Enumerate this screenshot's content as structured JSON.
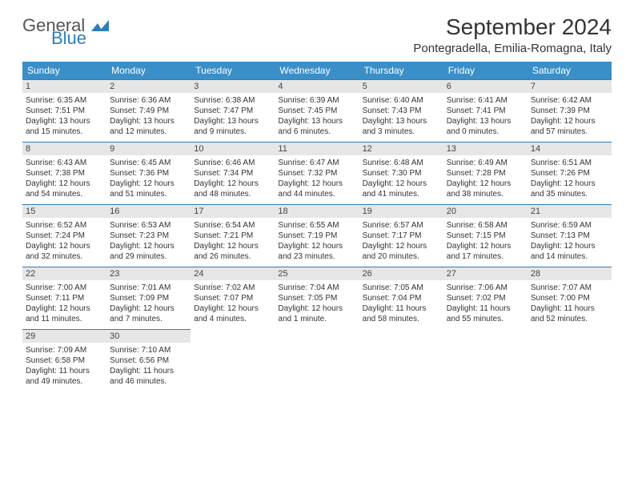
{
  "brand": {
    "general": "General",
    "blue": "Blue"
  },
  "header": {
    "month_title": "September 2024",
    "location": "Pontegradella, Emilia-Romagna, Italy"
  },
  "colors": {
    "header_bg": "#3a8fc8",
    "header_text": "#ffffff",
    "daynum_bg": "#e6e6e6",
    "cell_border": "#2d7fb8",
    "text": "#333333",
    "background": "#ffffff"
  },
  "daysOfWeek": [
    "Sunday",
    "Monday",
    "Tuesday",
    "Wednesday",
    "Thursday",
    "Friday",
    "Saturday"
  ],
  "calendar": {
    "type": "table",
    "columns": 7,
    "rows": 5,
    "days": [
      {
        "n": "1",
        "sunrise": "Sunrise: 6:35 AM",
        "sunset": "Sunset: 7:51 PM",
        "dayl1": "Daylight: 13 hours",
        "dayl2": "and 15 minutes."
      },
      {
        "n": "2",
        "sunrise": "Sunrise: 6:36 AM",
        "sunset": "Sunset: 7:49 PM",
        "dayl1": "Daylight: 13 hours",
        "dayl2": "and 12 minutes."
      },
      {
        "n": "3",
        "sunrise": "Sunrise: 6:38 AM",
        "sunset": "Sunset: 7:47 PM",
        "dayl1": "Daylight: 13 hours",
        "dayl2": "and 9 minutes."
      },
      {
        "n": "4",
        "sunrise": "Sunrise: 6:39 AM",
        "sunset": "Sunset: 7:45 PM",
        "dayl1": "Daylight: 13 hours",
        "dayl2": "and 6 minutes."
      },
      {
        "n": "5",
        "sunrise": "Sunrise: 6:40 AM",
        "sunset": "Sunset: 7:43 PM",
        "dayl1": "Daylight: 13 hours",
        "dayl2": "and 3 minutes."
      },
      {
        "n": "6",
        "sunrise": "Sunrise: 6:41 AM",
        "sunset": "Sunset: 7:41 PM",
        "dayl1": "Daylight: 13 hours",
        "dayl2": "and 0 minutes."
      },
      {
        "n": "7",
        "sunrise": "Sunrise: 6:42 AM",
        "sunset": "Sunset: 7:39 PM",
        "dayl1": "Daylight: 12 hours",
        "dayl2": "and 57 minutes."
      },
      {
        "n": "8",
        "sunrise": "Sunrise: 6:43 AM",
        "sunset": "Sunset: 7:38 PM",
        "dayl1": "Daylight: 12 hours",
        "dayl2": "and 54 minutes."
      },
      {
        "n": "9",
        "sunrise": "Sunrise: 6:45 AM",
        "sunset": "Sunset: 7:36 PM",
        "dayl1": "Daylight: 12 hours",
        "dayl2": "and 51 minutes."
      },
      {
        "n": "10",
        "sunrise": "Sunrise: 6:46 AM",
        "sunset": "Sunset: 7:34 PM",
        "dayl1": "Daylight: 12 hours",
        "dayl2": "and 48 minutes."
      },
      {
        "n": "11",
        "sunrise": "Sunrise: 6:47 AM",
        "sunset": "Sunset: 7:32 PM",
        "dayl1": "Daylight: 12 hours",
        "dayl2": "and 44 minutes."
      },
      {
        "n": "12",
        "sunrise": "Sunrise: 6:48 AM",
        "sunset": "Sunset: 7:30 PM",
        "dayl1": "Daylight: 12 hours",
        "dayl2": "and 41 minutes."
      },
      {
        "n": "13",
        "sunrise": "Sunrise: 6:49 AM",
        "sunset": "Sunset: 7:28 PM",
        "dayl1": "Daylight: 12 hours",
        "dayl2": "and 38 minutes."
      },
      {
        "n": "14",
        "sunrise": "Sunrise: 6:51 AM",
        "sunset": "Sunset: 7:26 PM",
        "dayl1": "Daylight: 12 hours",
        "dayl2": "and 35 minutes."
      },
      {
        "n": "15",
        "sunrise": "Sunrise: 6:52 AM",
        "sunset": "Sunset: 7:24 PM",
        "dayl1": "Daylight: 12 hours",
        "dayl2": "and 32 minutes."
      },
      {
        "n": "16",
        "sunrise": "Sunrise: 6:53 AM",
        "sunset": "Sunset: 7:23 PM",
        "dayl1": "Daylight: 12 hours",
        "dayl2": "and 29 minutes."
      },
      {
        "n": "17",
        "sunrise": "Sunrise: 6:54 AM",
        "sunset": "Sunset: 7:21 PM",
        "dayl1": "Daylight: 12 hours",
        "dayl2": "and 26 minutes."
      },
      {
        "n": "18",
        "sunrise": "Sunrise: 6:55 AM",
        "sunset": "Sunset: 7:19 PM",
        "dayl1": "Daylight: 12 hours",
        "dayl2": "and 23 minutes."
      },
      {
        "n": "19",
        "sunrise": "Sunrise: 6:57 AM",
        "sunset": "Sunset: 7:17 PM",
        "dayl1": "Daylight: 12 hours",
        "dayl2": "and 20 minutes."
      },
      {
        "n": "20",
        "sunrise": "Sunrise: 6:58 AM",
        "sunset": "Sunset: 7:15 PM",
        "dayl1": "Daylight: 12 hours",
        "dayl2": "and 17 minutes."
      },
      {
        "n": "21",
        "sunrise": "Sunrise: 6:59 AM",
        "sunset": "Sunset: 7:13 PM",
        "dayl1": "Daylight: 12 hours",
        "dayl2": "and 14 minutes."
      },
      {
        "n": "22",
        "sunrise": "Sunrise: 7:00 AM",
        "sunset": "Sunset: 7:11 PM",
        "dayl1": "Daylight: 12 hours",
        "dayl2": "and 11 minutes."
      },
      {
        "n": "23",
        "sunrise": "Sunrise: 7:01 AM",
        "sunset": "Sunset: 7:09 PM",
        "dayl1": "Daylight: 12 hours",
        "dayl2": "and 7 minutes."
      },
      {
        "n": "24",
        "sunrise": "Sunrise: 7:02 AM",
        "sunset": "Sunset: 7:07 PM",
        "dayl1": "Daylight: 12 hours",
        "dayl2": "and 4 minutes."
      },
      {
        "n": "25",
        "sunrise": "Sunrise: 7:04 AM",
        "sunset": "Sunset: 7:05 PM",
        "dayl1": "Daylight: 12 hours",
        "dayl2": "and 1 minute."
      },
      {
        "n": "26",
        "sunrise": "Sunrise: 7:05 AM",
        "sunset": "Sunset: 7:04 PM",
        "dayl1": "Daylight: 11 hours",
        "dayl2": "and 58 minutes."
      },
      {
        "n": "27",
        "sunrise": "Sunrise: 7:06 AM",
        "sunset": "Sunset: 7:02 PM",
        "dayl1": "Daylight: 11 hours",
        "dayl2": "and 55 minutes."
      },
      {
        "n": "28",
        "sunrise": "Sunrise: 7:07 AM",
        "sunset": "Sunset: 7:00 PM",
        "dayl1": "Daylight: 11 hours",
        "dayl2": "and 52 minutes."
      },
      {
        "n": "29",
        "sunrise": "Sunrise: 7:09 AM",
        "sunset": "Sunset: 6:58 PM",
        "dayl1": "Daylight: 11 hours",
        "dayl2": "and 49 minutes."
      },
      {
        "n": "30",
        "sunrise": "Sunrise: 7:10 AM",
        "sunset": "Sunset: 6:56 PM",
        "dayl1": "Daylight: 11 hours",
        "dayl2": "and 46 minutes."
      }
    ]
  }
}
